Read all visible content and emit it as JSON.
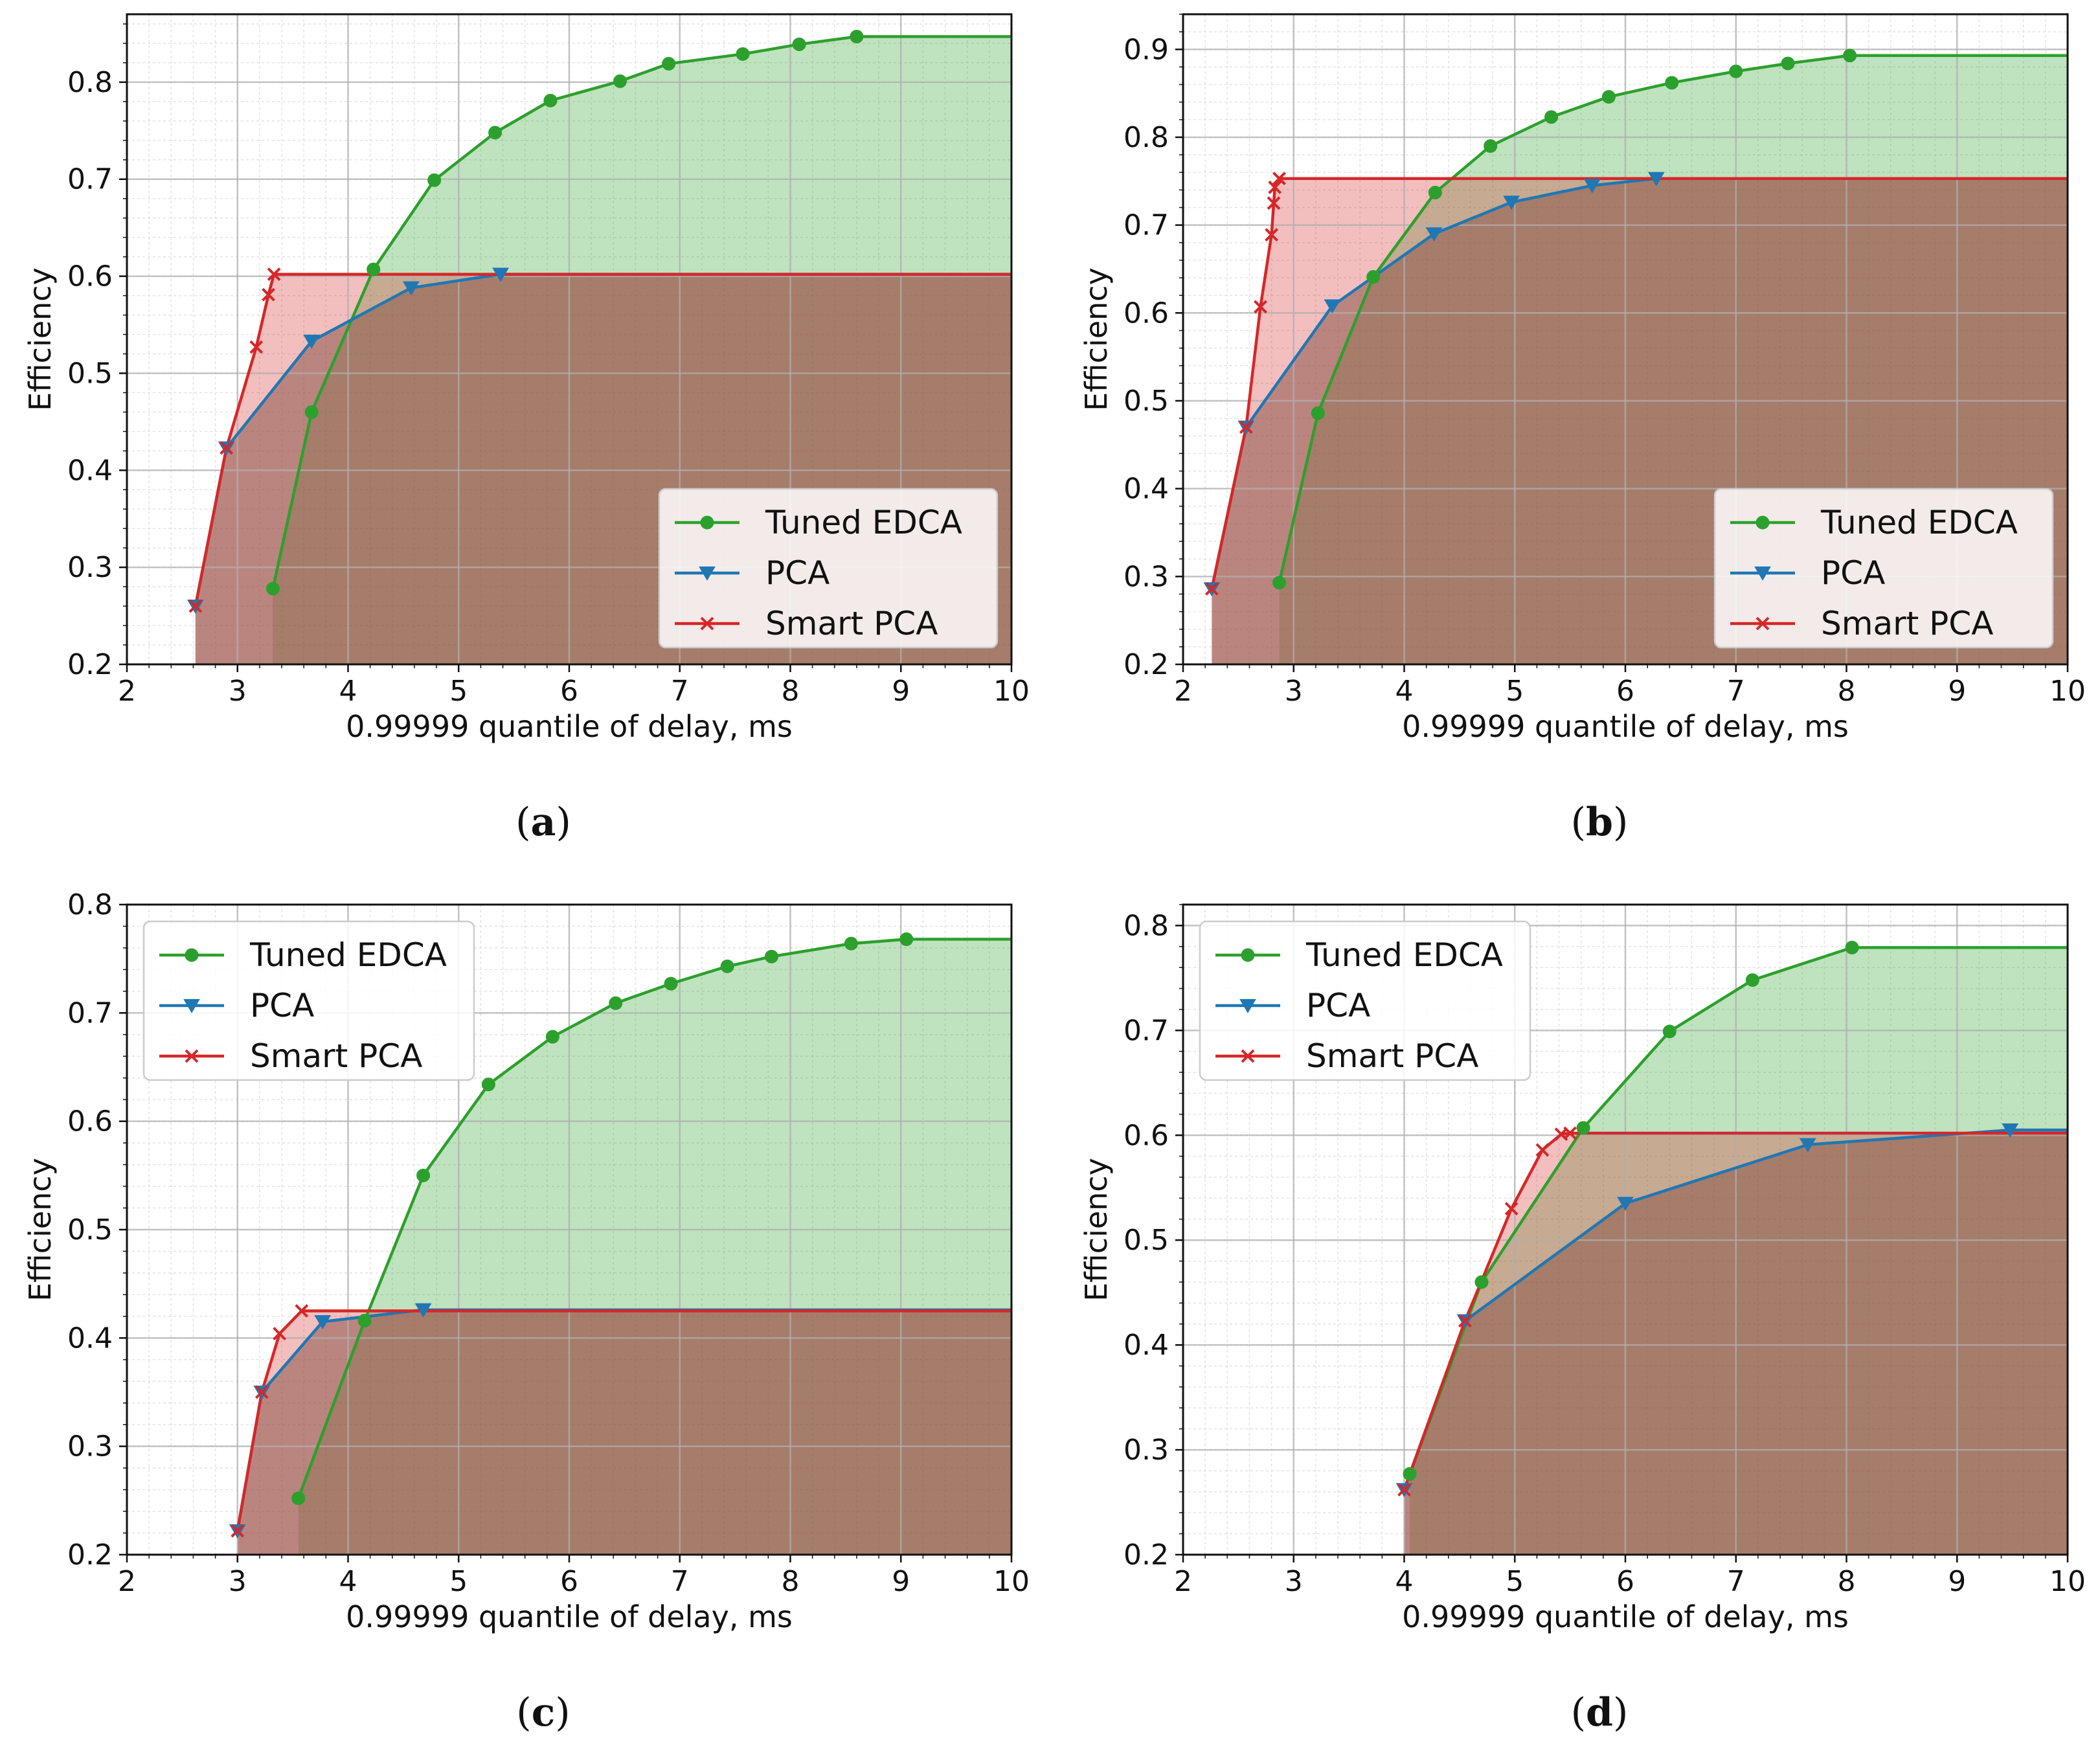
{
  "figure": {
    "x_label": "0.99999 quantile of delay, ms",
    "y_label": "Efficiency"
  },
  "colors": {
    "tuned": "#2ca02c",
    "pca": "#1f77b4",
    "smart": "#d62728",
    "fill_green": "#2ca02c",
    "fill_red": "#d62728",
    "fill_brown": "#8c564b",
    "grid_major": "#b0b0b0",
    "grid_minor": "#e3e3e3"
  },
  "chart_data": [
    {
      "type": "line",
      "panel": "a",
      "caption": "a",
      "xlabel": "0.99999 quantile of delay, ms",
      "ylabel": "Efficiency",
      "xlim": [
        2,
        10
      ],
      "ylim": [
        0.2,
        0.87
      ],
      "xticks": [
        2,
        3,
        4,
        5,
        6,
        7,
        8,
        9,
        10
      ],
      "yticks": [
        0.2,
        0.3,
        0.4,
        0.5,
        0.6,
        0.7,
        0.8
      ],
      "ytick_labels": [
        "0.2",
        "0.3",
        "0.4",
        "0.5",
        "0.6",
        "0.7",
        "0.8"
      ],
      "grid": true,
      "legend": "bottom-right",
      "series": [
        {
          "name": "Tuned EDCA",
          "marker": "circle",
          "color_key": "tuned",
          "fill_key": "fill_green",
          "x": [
            3.32,
            3.67,
            4.23,
            4.78,
            5.33,
            5.83,
            6.46,
            6.9,
            7.57,
            8.08,
            8.6
          ],
          "y": [
            0.278,
            0.46,
            0.607,
            0.699,
            0.748,
            0.781,
            0.801,
            0.819,
            0.829,
            0.839,
            0.847
          ]
        },
        {
          "name": "PCA",
          "marker": "triangle",
          "color_key": "pca",
          "fill_key": "fill_brown",
          "x": [
            2.62,
            2.9,
            3.67,
            4.57,
            5.38
          ],
          "y": [
            0.26,
            0.423,
            0.533,
            0.588,
            0.602
          ]
        },
        {
          "name": "Smart PCA",
          "marker": "x",
          "color_key": "smart",
          "fill_key": "fill_red",
          "x": [
            2.62,
            2.9,
            3.17,
            3.28,
            3.33
          ],
          "y": [
            0.26,
            0.423,
            0.527,
            0.581,
            0.602
          ]
        }
      ]
    },
    {
      "type": "line",
      "panel": "b",
      "caption": "b",
      "xlabel": "0.99999 quantile of delay, ms",
      "ylabel": "Efficiency",
      "xlim": [
        2,
        10
      ],
      "ylim": [
        0.2,
        0.94
      ],
      "xticks": [
        2,
        3,
        4,
        5,
        6,
        7,
        8,
        9,
        10
      ],
      "yticks": [
        0.2,
        0.3,
        0.4,
        0.5,
        0.6,
        0.7,
        0.8,
        0.9
      ],
      "ytick_labels": [
        "0.2",
        "0.3",
        "0.4",
        "0.5",
        "0.6",
        "0.7",
        "0.8",
        "0.9"
      ],
      "grid": true,
      "legend": "bottom-right",
      "series": [
        {
          "name": "Tuned EDCA",
          "marker": "circle",
          "color_key": "tuned",
          "fill_key": "fill_green",
          "x": [
            2.87,
            3.22,
            3.72,
            4.28,
            4.78,
            5.33,
            5.85,
            6.42,
            7.0,
            7.47,
            8.03
          ],
          "y": [
            0.293,
            0.486,
            0.641,
            0.737,
            0.79,
            0.823,
            0.846,
            0.862,
            0.875,
            0.884,
            0.893
          ]
        },
        {
          "name": "PCA",
          "marker": "triangle",
          "color_key": "pca",
          "fill_key": "fill_brown",
          "x": [
            2.26,
            2.57,
            3.35,
            4.27,
            4.97,
            5.7,
            6.28
          ],
          "y": [
            0.286,
            0.47,
            0.608,
            0.69,
            0.726,
            0.745,
            0.753
          ]
        },
        {
          "name": "Smart PCA",
          "marker": "x",
          "color_key": "smart",
          "fill_key": "fill_red",
          "x": [
            2.26,
            2.57,
            2.7,
            2.8,
            2.82,
            2.83,
            2.87
          ],
          "y": [
            0.286,
            0.47,
            0.607,
            0.689,
            0.725,
            0.743,
            0.753
          ]
        }
      ]
    },
    {
      "type": "line",
      "panel": "c",
      "caption": "c",
      "xlabel": "0.99999 quantile of delay, ms",
      "ylabel": "Efficiency",
      "xlim": [
        2,
        10
      ],
      "ylim": [
        0.2,
        0.8
      ],
      "xticks": [
        2,
        3,
        4,
        5,
        6,
        7,
        8,
        9,
        10
      ],
      "yticks": [
        0.2,
        0.3,
        0.4,
        0.5,
        0.6,
        0.7,
        0.8
      ],
      "ytick_labels": [
        "0.2",
        "0.3",
        "0.4",
        "0.5",
        "0.6",
        "0.7",
        "0.8"
      ],
      "grid": true,
      "legend": "top-left",
      "series": [
        {
          "name": "Tuned EDCA",
          "marker": "circle",
          "color_key": "tuned",
          "fill_key": "fill_green",
          "x": [
            3.55,
            4.15,
            4.68,
            5.27,
            5.85,
            6.42,
            6.92,
            7.43,
            7.83,
            8.55,
            9.05
          ],
          "y": [
            0.252,
            0.416,
            0.55,
            0.634,
            0.678,
            0.709,
            0.727,
            0.743,
            0.752,
            0.764,
            0.768
          ]
        },
        {
          "name": "PCA",
          "marker": "triangle",
          "color_key": "pca",
          "fill_key": "fill_brown",
          "x": [
            3.0,
            3.22,
            3.77,
            4.68
          ],
          "y": [
            0.222,
            0.35,
            0.415,
            0.426
          ]
        },
        {
          "name": "Smart PCA",
          "marker": "x",
          "color_key": "smart",
          "fill_key": "fill_red",
          "x": [
            3.0,
            3.22,
            3.38,
            3.58
          ],
          "y": [
            0.222,
            0.35,
            0.404,
            0.425
          ]
        }
      ]
    },
    {
      "type": "line",
      "panel": "d",
      "caption": "d",
      "xlabel": "0.99999 quantile of delay, ms",
      "ylabel": "Efficiency",
      "xlim": [
        2,
        10
      ],
      "ylim": [
        0.2,
        0.82
      ],
      "xticks": [
        2,
        3,
        4,
        5,
        6,
        7,
        8,
        9,
        10
      ],
      "yticks": [
        0.2,
        0.3,
        0.4,
        0.5,
        0.6,
        0.7,
        0.8
      ],
      "ytick_labels": [
        "0.2",
        "0.3",
        "0.4",
        "0.5",
        "0.6",
        "0.7",
        "0.8"
      ],
      "grid": true,
      "legend": "top-left",
      "series": [
        {
          "name": "Tuned EDCA",
          "marker": "circle",
          "color_key": "tuned",
          "fill_key": "fill_green",
          "x": [
            4.05,
            4.7,
            5.62,
            6.4,
            7.15,
            8.05
          ],
          "y": [
            0.277,
            0.46,
            0.607,
            0.699,
            0.748,
            0.779
          ]
        },
        {
          "name": "PCA",
          "marker": "triangle",
          "color_key": "pca",
          "fill_key": "fill_brown",
          "x": [
            4.0,
            4.55,
            6.0,
            7.65,
            9.48
          ],
          "y": [
            0.262,
            0.423,
            0.535,
            0.591,
            0.605
          ]
        },
        {
          "name": "Smart PCA",
          "marker": "x",
          "color_key": "smart",
          "fill_key": "fill_red",
          "x": [
            4.0,
            4.55,
            4.97,
            5.25,
            5.42,
            5.5
          ],
          "y": [
            0.262,
            0.423,
            0.53,
            0.586,
            0.601,
            0.602
          ]
        }
      ]
    }
  ]
}
